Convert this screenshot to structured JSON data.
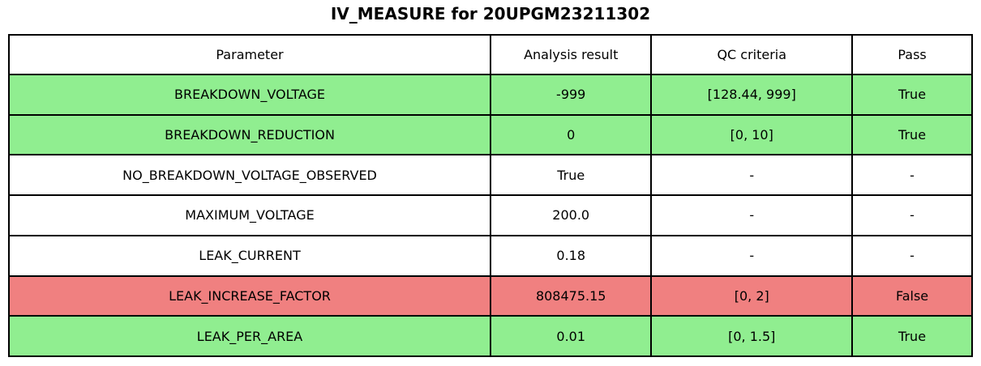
{
  "chart_data": {
    "type": "table",
    "title": "IV_MEASURE for 20UPGM23211302",
    "columns": [
      "Parameter",
      "Analysis result",
      "QC criteria",
      "Pass"
    ],
    "rows": [
      [
        "BREAKDOWN_VOLTAGE",
        "-999",
        "[128.44, 999]",
        "True"
      ],
      [
        "BREAKDOWN_REDUCTION",
        "0",
        "[0, 10]",
        "True"
      ],
      [
        "NO_BREAKDOWN_VOLTAGE_OBSERVED",
        "True",
        "-",
        "-"
      ],
      [
        "MAXIMUM_VOLTAGE",
        "200.0",
        "-",
        "-"
      ],
      [
        "LEAK_CURRENT",
        "0.18",
        "-",
        "-"
      ],
      [
        "LEAK_INCREASE_FACTOR",
        "808475.15",
        "[0, 2]",
        "False"
      ],
      [
        "LEAK_PER_AREA",
        "0.01",
        "[0, 1.5]",
        "True"
      ]
    ],
    "row_status": [
      "pass",
      "pass",
      "none",
      "none",
      "none",
      "fail",
      "pass"
    ],
    "legend_position": "none",
    "grid": "full-cell-borders"
  },
  "colors": {
    "pass": "#90EE90",
    "fail": "#F08080",
    "none": "#FFFFFF",
    "border": "#000000",
    "text": "#000000",
    "background": "#FFFFFF"
  }
}
